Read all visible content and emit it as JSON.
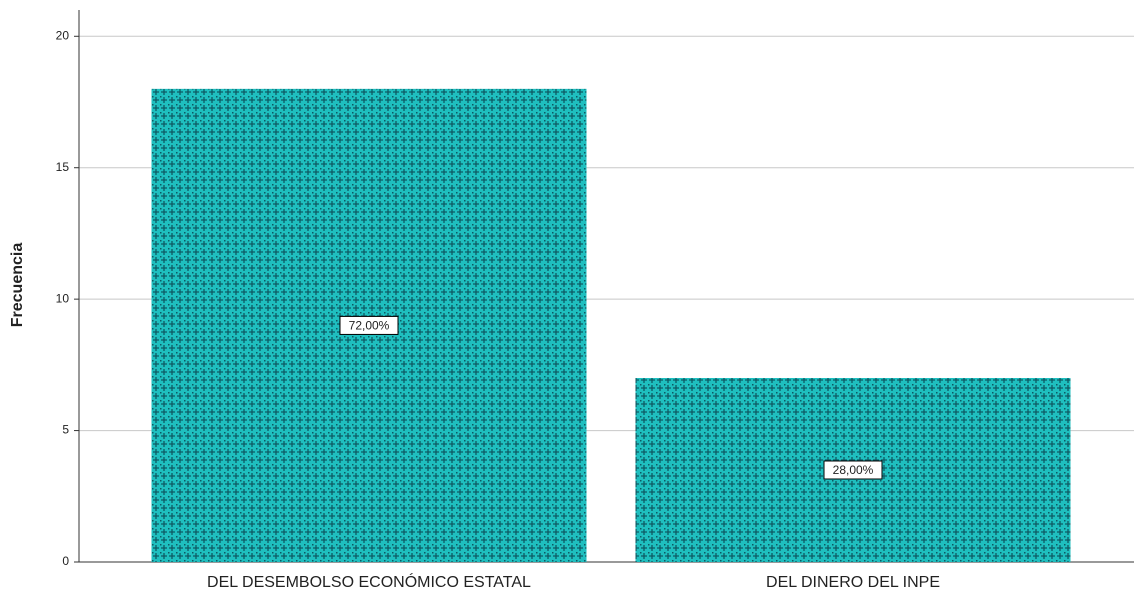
{
  "chart_data": {
    "type": "bar",
    "y_label": "Frecuencia",
    "categories": [
      "DEL DESEMBOLSO ECONÓMICO ESTATAL",
      "DEL DINERO DEL INPE"
    ],
    "values": [
      18,
      7
    ],
    "percent_labels": [
      "72,00%",
      "28,00%"
    ],
    "color": "#1fbfbf",
    "ylim": [
      0,
      21
    ],
    "yticks": [
      0,
      5,
      10,
      15,
      20
    ],
    "grid": true
  }
}
